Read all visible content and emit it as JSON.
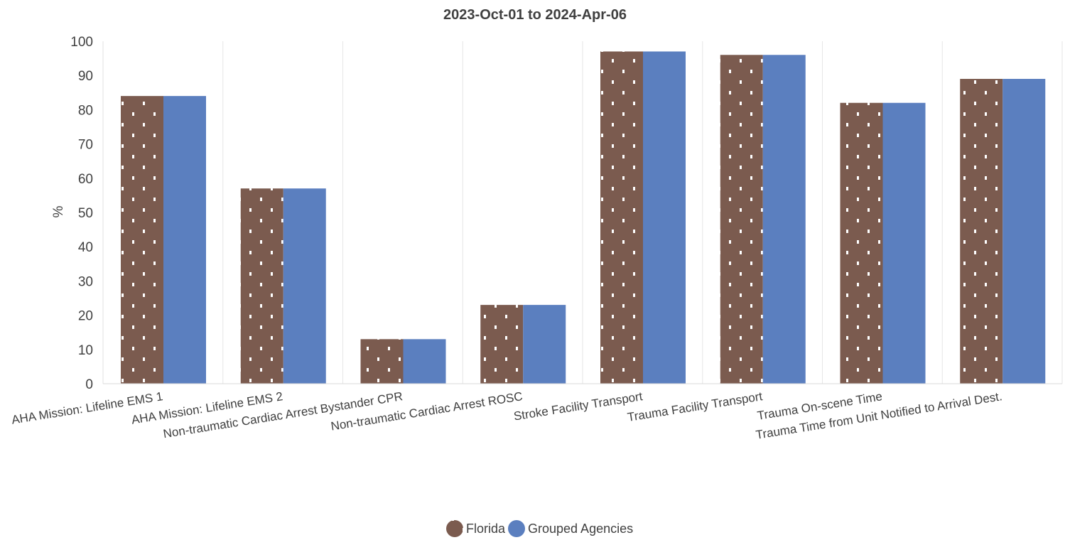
{
  "chart_data": {
    "type": "bar",
    "title": "2023-Oct-01 to 2024-Apr-06",
    "ylabel": "%",
    "xlabel": "",
    "ylim": [
      0,
      100
    ],
    "yticks": [
      "0",
      "10",
      "20",
      "30",
      "40",
      "50",
      "60",
      "70",
      "80",
      "90",
      "100"
    ],
    "categories": [
      "AHA Mission: Lifeline EMS 1",
      "AHA Mission: Lifeline EMS 2",
      "Non-traumatic Cardiac Arrest Bystander CPR",
      "Non-traumatic Cardiac Arrest ROSC",
      "Stroke Facility Transport",
      "Trauma Facility Transport",
      "Trauma On-scene Time",
      "Trauma Time from Unit Notified to Arrival Dest."
    ],
    "series": [
      {
        "name": "Florida",
        "color": "#7b5b4f",
        "pattern": "white dots",
        "values": [
          84,
          57,
          13,
          23,
          97,
          96,
          82,
          89
        ]
      },
      {
        "name": "Grouped Agencies",
        "color": "#5b7fbf",
        "values": [
          84,
          57,
          13,
          23,
          97,
          96,
          82,
          89
        ]
      }
    ],
    "grid": "vertical lines between categories",
    "legend_position": "bottom-center"
  }
}
